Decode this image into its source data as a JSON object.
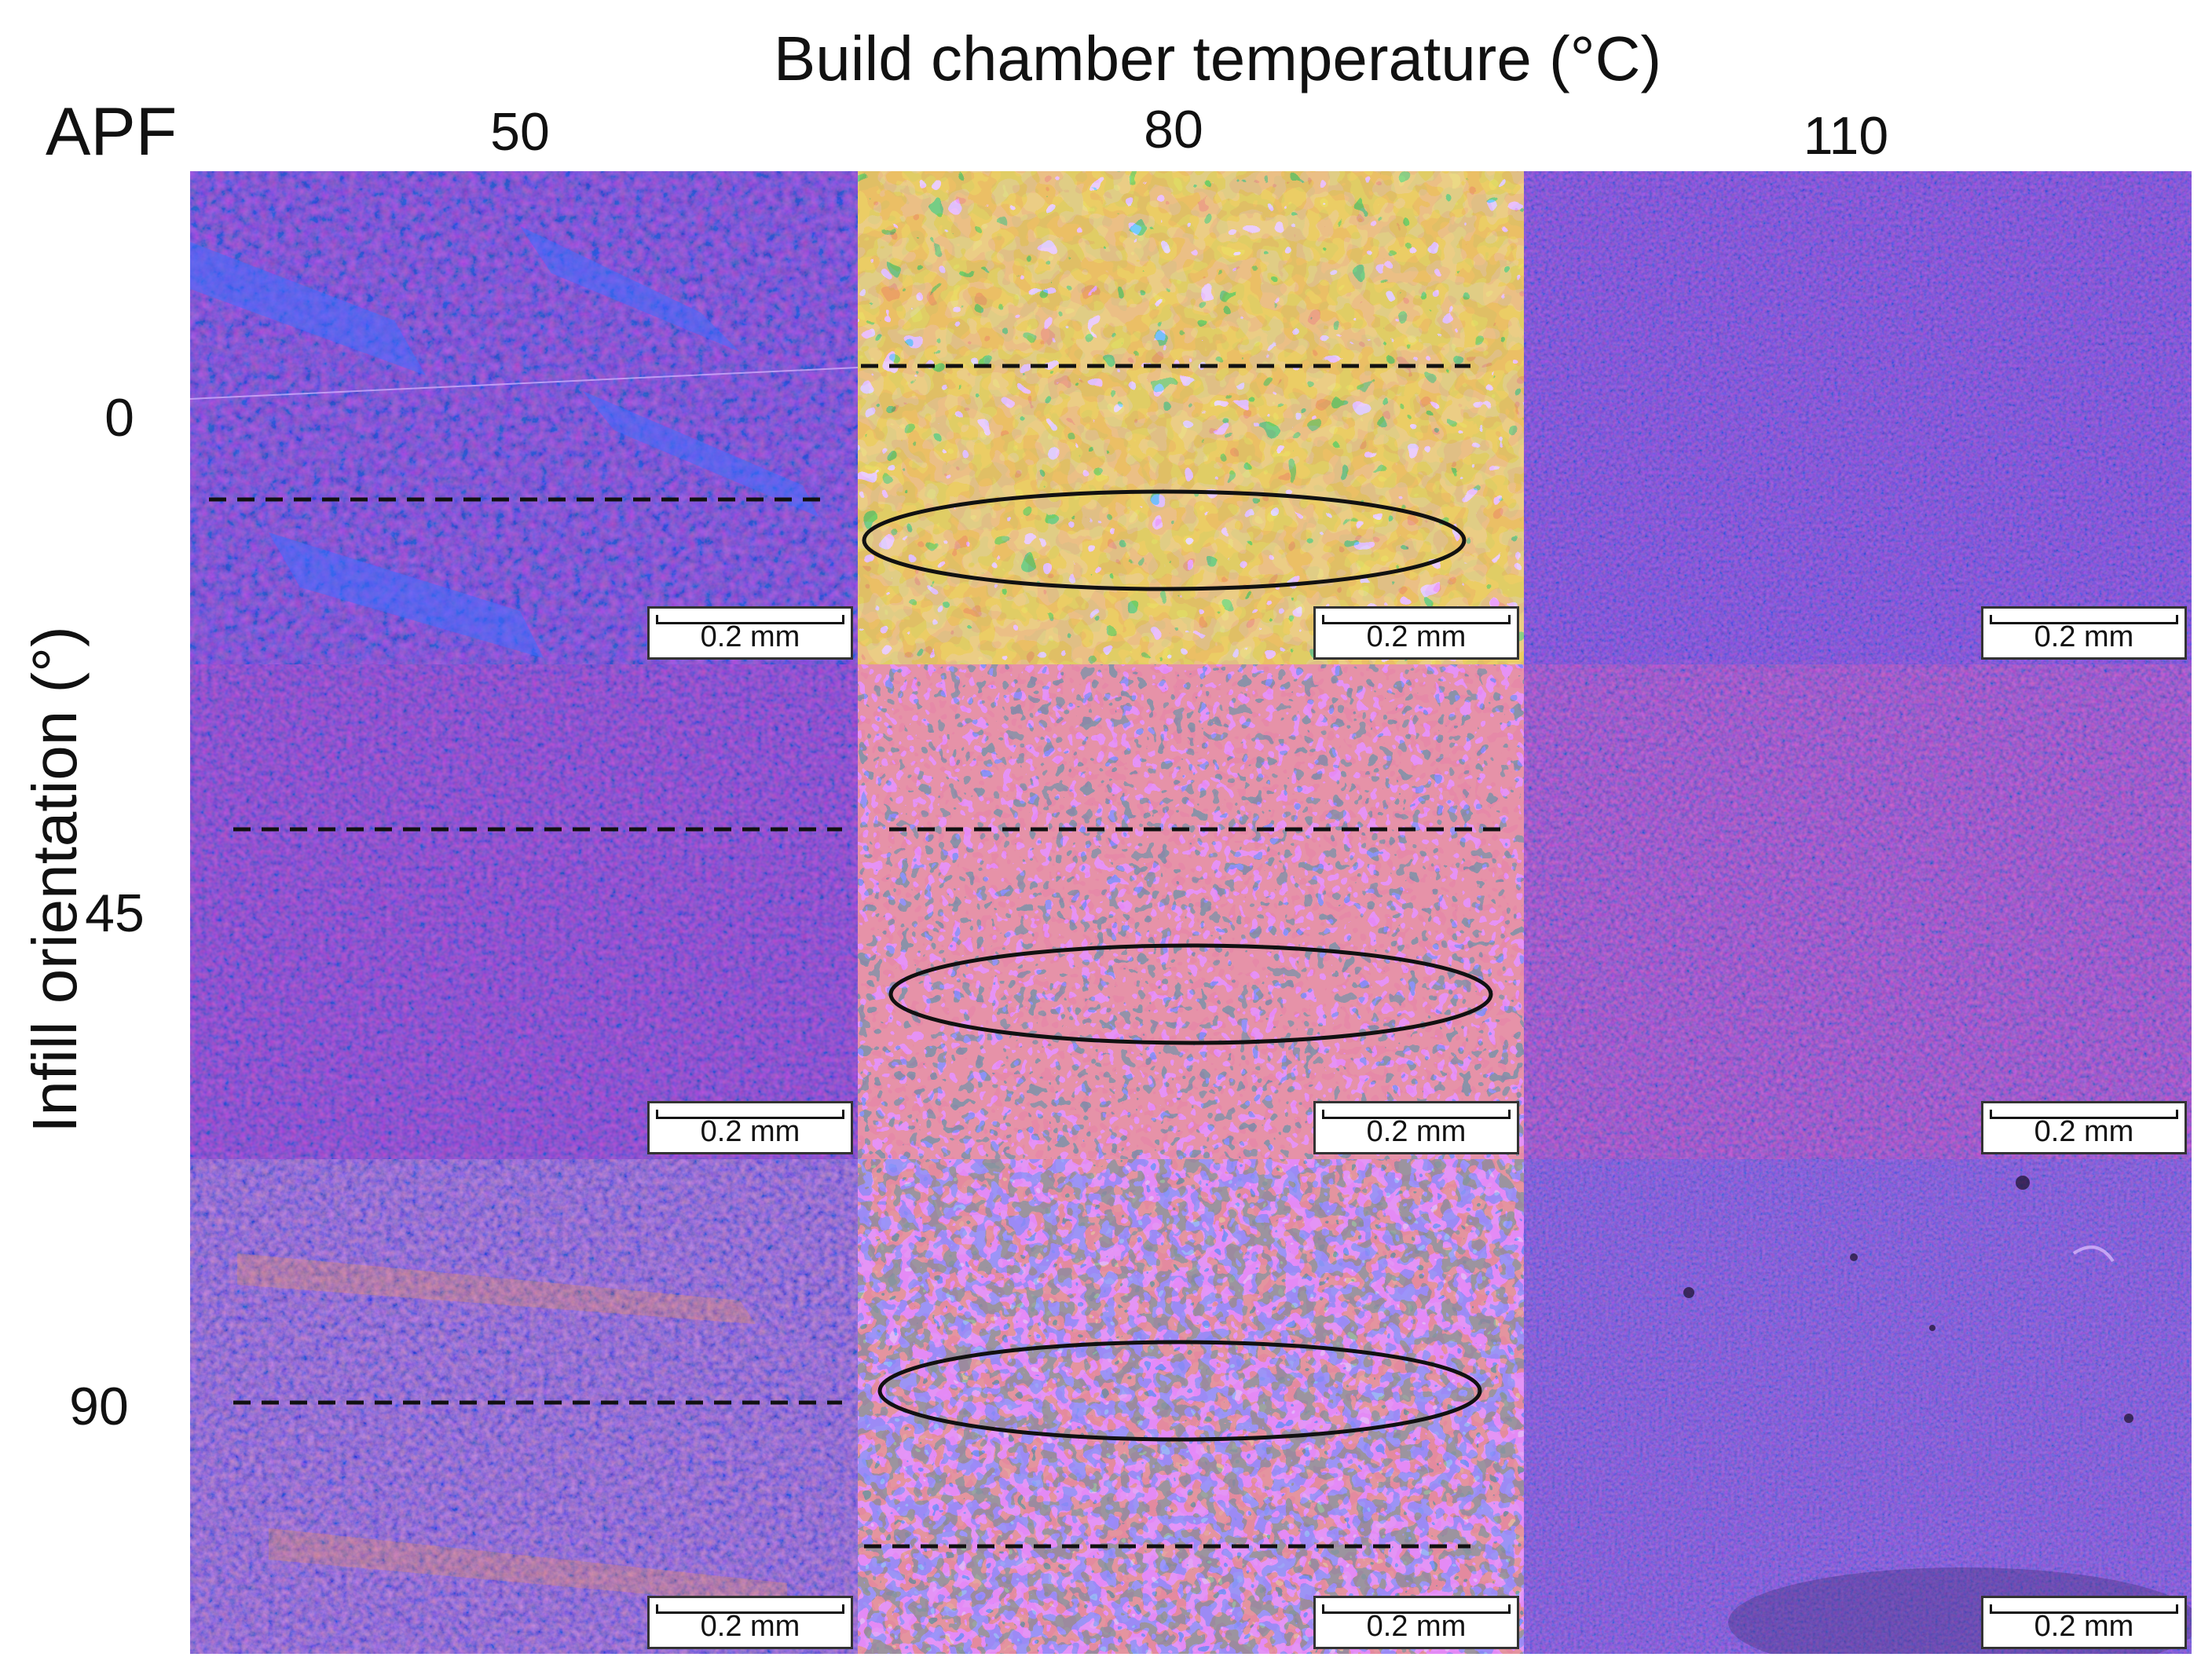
{
  "figure": {
    "column_axis_title": "Build chamber temperature (°C)",
    "corner_label": "APF",
    "row_axis_title": "Infill orientation (°)",
    "columns": [
      "50",
      "80",
      "110"
    ],
    "rows": [
      "0",
      "45",
      "90"
    ],
    "scale_bar_label": "0.2 mm",
    "colors": {
      "base_purple": "#6a3fc8",
      "red_orange": "#ff4a3a",
      "blue": "#3f6dff",
      "cyan": "#58d8ff",
      "orange_yellow": "#ffb030"
    }
  }
}
